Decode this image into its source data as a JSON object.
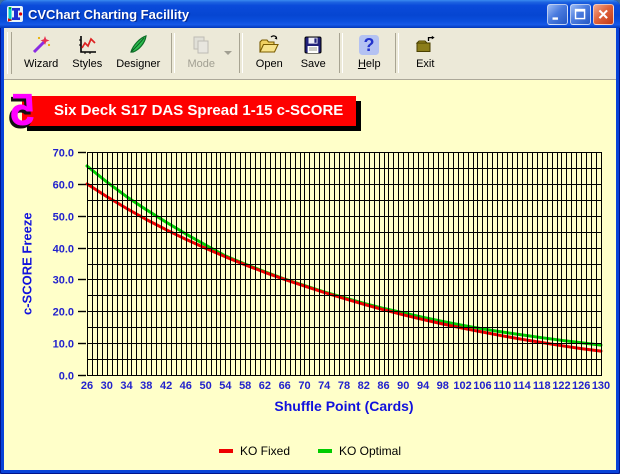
{
  "window": {
    "title": "CVChart Charting Facillity",
    "controls": [
      {
        "name": "minimize",
        "icon": "minimize-icon"
      },
      {
        "name": "maximize",
        "icon": "maximize-icon"
      },
      {
        "name": "close",
        "icon": "close-icon"
      }
    ]
  },
  "toolbar": {
    "buttons": [
      {
        "label": "Wizard",
        "icon": "magic-wand-icon",
        "enabled": true
      },
      {
        "label": "Styles",
        "icon": "chart-styles-icon",
        "enabled": true
      },
      {
        "label": "Designer",
        "icon": "designer-pen-icon",
        "enabled": true
      },
      {
        "separator": true
      },
      {
        "label": "Mode",
        "icon": "copy-mode-icon",
        "enabled": false,
        "dropdown": true
      },
      {
        "separator": true
      },
      {
        "label": "Open",
        "icon": "open-folder-icon",
        "enabled": true
      },
      {
        "label": "Save",
        "icon": "save-floppy-icon",
        "enabled": true
      },
      {
        "separator": true
      },
      {
        "label": "Help",
        "icon": "help-icon",
        "enabled": true,
        "underline_first": true
      },
      {
        "separator": true
      },
      {
        "label": "Exit",
        "icon": "exit-icon",
        "enabled": true
      }
    ]
  },
  "banner": {
    "glyph": "5",
    "title": "Six Deck S17 DAS Spread 1-15 c-SCORE",
    "background": "#FE0000",
    "glyph_color": "#FF00FF"
  },
  "chart_data": {
    "type": "line",
    "title": "Six Deck S17 DAS Spread 1-15 c-SCORE",
    "xlabel": "Shuffle Point (Cards)",
    "ylabel": "c-SCORE Freeze",
    "x": [
      26,
      30,
      34,
      38,
      42,
      46,
      50,
      54,
      58,
      62,
      66,
      70,
      74,
      78,
      82,
      86,
      90,
      94,
      98,
      102,
      106,
      110,
      114,
      118,
      122,
      126,
      130
    ],
    "series": [
      {
        "name": "KO Fixed",
        "color": "#EE0000",
        "values": [
          60.0,
          56.0,
          52.3,
          48.8,
          45.6,
          42.6,
          39.8,
          37.1,
          34.6,
          32.2,
          30.0,
          27.9,
          25.9,
          24.0,
          22.2,
          20.5,
          18.9,
          17.4,
          16.0,
          14.7,
          13.5,
          12.3,
          11.2,
          10.2,
          9.2,
          8.3,
          7.5
        ]
      },
      {
        "name": "KO Optimal",
        "color": "#00CC00",
        "values": [
          65.6,
          60.6,
          56.0,
          51.9,
          48.0,
          44.3,
          40.8,
          37.4,
          34.8,
          32.4,
          30.1,
          28.1,
          26.1,
          24.3,
          22.5,
          20.9,
          19.5,
          18.1,
          16.8,
          15.6,
          14.5,
          13.5,
          12.6,
          11.7,
          10.9,
          10.1,
          9.4
        ]
      }
    ],
    "xlim": [
      26,
      130
    ],
    "ylim": [
      0,
      70
    ],
    "y_major_ticks": [
      0,
      10,
      20,
      30,
      40,
      50,
      60,
      70
    ],
    "y_tick_labels": [
      "0.0",
      "10.0",
      "20.0",
      "30.0",
      "40.0",
      "50.0",
      "60.0",
      "70.0"
    ],
    "y_grid_step": 5,
    "x_grid_step": 1,
    "grid": true,
    "grid_color": "#000000",
    "plot_background": "#FFFFC9",
    "label_color": "#2222CC",
    "axis_title_color": "#1111DD",
    "legend_position": "bottom"
  }
}
